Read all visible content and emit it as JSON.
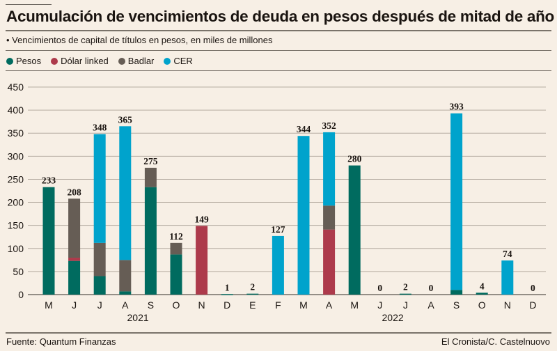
{
  "title": "Acumulación de vencimientos de deuda en pesos después de mitad de año",
  "subtitle": "• Vencimientos de capital de títulos en pesos, en miles de millones",
  "source": "Fuente: Quantum Finanzas",
  "credit": "El Cronista/C. Castelnuovo",
  "legend": [
    {
      "name": "Pesos",
      "color": "#006b5f"
    },
    {
      "name": "Dólar linked",
      "color": "#ad3a4b"
    },
    {
      "name": "Badlar",
      "color": "#665d55"
    },
    {
      "name": "CER",
      "color": "#00a3cc"
    }
  ],
  "chart_data": {
    "type": "bar",
    "stacked": true,
    "title": "Acumulación de vencimientos de deuda en pesos después de mitad de año",
    "subtitle": "Vencimientos de capital de títulos en pesos, en miles de millones",
    "xlabel": "",
    "ylabel": "",
    "ylim": [
      0,
      450
    ],
    "yticks": [
      0,
      50,
      100,
      150,
      200,
      250,
      300,
      350,
      400,
      450
    ],
    "grid": true,
    "legend_position": "top-left",
    "categories": [
      "M",
      "J",
      "J",
      "A",
      "S",
      "O",
      "N",
      "D",
      "E",
      "F",
      "M",
      "A",
      "M",
      "J",
      "J",
      "A",
      "S",
      "O",
      "N",
      "D"
    ],
    "year_groups": [
      {
        "label": "2021",
        "start": 0,
        "end": 7
      },
      {
        "label": "2022",
        "start": 8,
        "end": 19
      }
    ],
    "series": [
      {
        "name": "Pesos",
        "color": "#006b5f",
        "values": [
          233,
          73,
          40,
          7,
          233,
          87,
          0,
          1,
          2,
          0,
          0,
          0,
          280,
          0,
          2,
          0,
          10,
          4,
          0,
          0
        ]
      },
      {
        "name": "Dólar linked",
        "color": "#ad3a4b",
        "values": [
          0,
          7,
          0,
          0,
          0,
          0,
          149,
          0,
          0,
          0,
          0,
          141,
          0,
          0,
          0,
          0,
          0,
          0,
          0,
          0
        ]
      },
      {
        "name": "Badlar",
        "color": "#665d55",
        "values": [
          0,
          128,
          72,
          68,
          42,
          25,
          0,
          0,
          0,
          0,
          0,
          52,
          0,
          0,
          0,
          0,
          0,
          0,
          0,
          0
        ]
      },
      {
        "name": "CER",
        "color": "#00a3cc",
        "values": [
          0,
          0,
          236,
          290,
          0,
          0,
          0,
          0,
          0,
          127,
          344,
          159,
          0,
          0,
          0,
          0,
          383,
          0,
          74,
          0
        ]
      }
    ],
    "totals": [
      233,
      208,
      348,
      365,
      275,
      112,
      149,
      1,
      2,
      127,
      344,
      352,
      280,
      0,
      2,
      0,
      393,
      4,
      74,
      0
    ]
  }
}
